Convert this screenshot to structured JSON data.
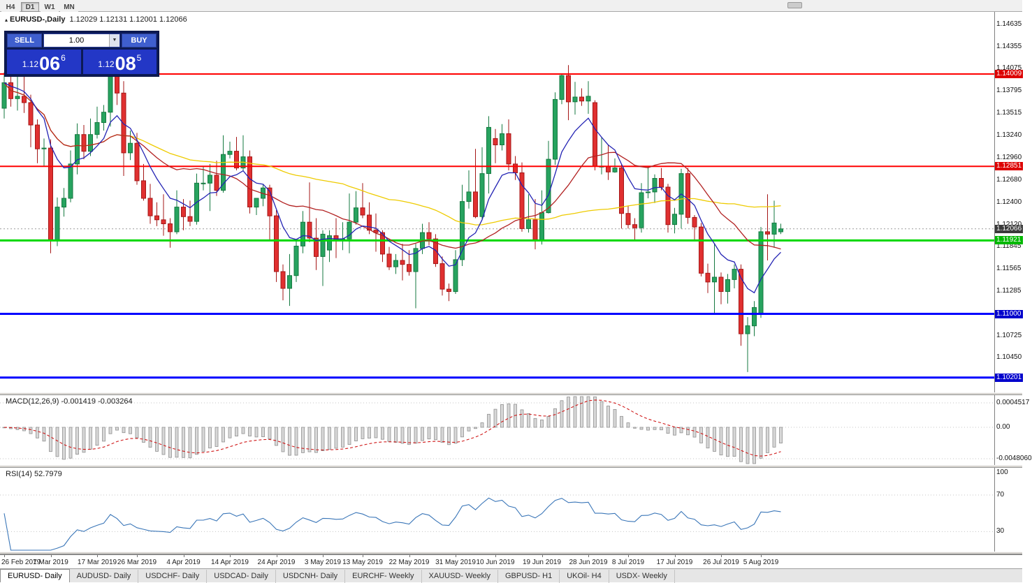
{
  "toolbar": {
    "timeframes": [
      "H4",
      "D1",
      "W1",
      "MN"
    ],
    "active": "D1"
  },
  "chart": {
    "collapse_icon": "▴",
    "symbol_period": "EURUSD-,Daily",
    "ohlc": "1.12029 1.12131 1.12001 1.12066"
  },
  "one_click": {
    "sell_label": "SELL",
    "buy_label": "BUY",
    "volume": "1.00",
    "dropdown_icon": "▼",
    "sell_price": {
      "prefix": "1.12",
      "big": "06",
      "sup": "6"
    },
    "buy_price": {
      "prefix": "1.12",
      "big": "08",
      "sup": "5"
    }
  },
  "chart_data": {
    "type": "candlestick",
    "symbol": "EURUSD-",
    "timeframe": "Daily",
    "ohlc_display": "1.12029 1.12131 1.12001 1.12066",
    "current_price": 1.12066,
    "current_price_label": "1.12066",
    "current_tag_bg": "#3a3a3a",
    "up_color": "#27a35f",
    "up_border": "#157a40",
    "down_color": "#e03030",
    "down_border": "#a51717",
    "price_axis": [
      "1.14635",
      "1.14355",
      "1.14075",
      "1.13795",
      "1.13515",
      "1.13240",
      "1.12960",
      "1.12680",
      "1.12400",
      "1.12120",
      "1.11845",
      "1.11565",
      "1.11285",
      "1.10725",
      "1.10450"
    ],
    "hlines": [
      {
        "price": 1.14009,
        "label": "1.14009",
        "color": "#ff0000",
        "label_bg": "#dd0000",
        "width": 2
      },
      {
        "price": 1.12851,
        "label": "1.12851",
        "color": "#ff0000",
        "label_bg": "#dd0000",
        "width": 2
      },
      {
        "price": 1.11921,
        "label": "1.11921",
        "color": "#00d800",
        "label_bg": "#00b800",
        "width": 3
      },
      {
        "price": 1.11,
        "label": "1.11000",
        "color": "#0000ff",
        "label_bg": "#0000cc",
        "width": 3
      },
      {
        "price": 1.10201,
        "label": "1.10201",
        "color": "#0000ff",
        "label_bg": "#0000cc",
        "width": 3
      }
    ],
    "moving_averages": [
      {
        "name": "slow",
        "period": 52,
        "type": "sma",
        "color": "#eecb00"
      },
      {
        "name": "medium",
        "period": 20,
        "type": "sma",
        "color": "#b22222"
      },
      {
        "name": "fast",
        "period": 8,
        "type": "ema",
        "color": "#2424b4"
      }
    ],
    "candles": [
      [
        1.1358,
        1.1403,
        1.1345,
        1.139
      ],
      [
        1.139,
        1.1401,
        1.136,
        1.137
      ],
      [
        1.137,
        1.142,
        1.1355,
        1.1373
      ],
      [
        1.1373,
        1.141,
        1.1352,
        1.1365
      ],
      [
        1.1365,
        1.1375,
        1.1309,
        1.1337
      ],
      [
        1.1337,
        1.1344,
        1.1289,
        1.1307
      ],
      [
        1.1307,
        1.132,
        1.1285,
        1.1308
      ],
      [
        1.1308,
        1.1319,
        1.1176,
        1.1193
      ],
      [
        1.1193,
        1.1246,
        1.1185,
        1.1234
      ],
      [
        1.1234,
        1.1258,
        1.1222,
        1.1245
      ],
      [
        1.1245,
        1.1305,
        1.124,
        1.1288
      ],
      [
        1.1288,
        1.1339,
        1.1275,
        1.1325
      ],
      [
        1.1325,
        1.1337,
        1.1294,
        1.1304
      ],
      [
        1.1304,
        1.1345,
        1.1298,
        1.1325
      ],
      [
        1.1325,
        1.136,
        1.132,
        1.134
      ],
      [
        1.134,
        1.1362,
        1.133,
        1.1353
      ],
      [
        1.1353,
        1.1448,
        1.1335,
        1.1412
      ],
      [
        1.1412,
        1.1438,
        1.1362,
        1.1377
      ],
      [
        1.1377,
        1.1392,
        1.1273,
        1.1302
      ],
      [
        1.1302,
        1.133,
        1.1293,
        1.1314
      ],
      [
        1.1314,
        1.1327,
        1.1262,
        1.1267
      ],
      [
        1.1267,
        1.1288,
        1.1242,
        1.1245
      ],
      [
        1.1245,
        1.1263,
        1.1213,
        1.1223
      ],
      [
        1.1223,
        1.124,
        1.121,
        1.1218
      ],
      [
        1.1218,
        1.125,
        1.1198,
        1.1213
      ],
      [
        1.1213,
        1.122,
        1.1183,
        1.1203
      ],
      [
        1.1203,
        1.1255,
        1.12,
        1.1234
      ],
      [
        1.1234,
        1.1244,
        1.1205,
        1.1222
      ],
      [
        1.1222,
        1.1242,
        1.121,
        1.1216
      ],
      [
        1.1216,
        1.1276,
        1.1212,
        1.1264
      ],
      [
        1.1264,
        1.1285,
        1.1255,
        1.1264
      ],
      [
        1.1264,
        1.1288,
        1.1229,
        1.1274
      ],
      [
        1.1274,
        1.1292,
        1.1248,
        1.1255
      ],
      [
        1.1255,
        1.1324,
        1.1252,
        1.13
      ],
      [
        1.13,
        1.1316,
        1.1295,
        1.1304
      ],
      [
        1.1304,
        1.1322,
        1.128,
        1.1283
      ],
      [
        1.1283,
        1.1324,
        1.128,
        1.1297
      ],
      [
        1.1297,
        1.1305,
        1.1226,
        1.1234
      ],
      [
        1.1234,
        1.1245,
        1.1224,
        1.1245
      ],
      [
        1.1245,
        1.1262,
        1.1235,
        1.1258
      ],
      [
        1.1258,
        1.1262,
        1.1192,
        1.1223
      ],
      [
        1.1223,
        1.123,
        1.114,
        1.1153
      ],
      [
        1.1153,
        1.1162,
        1.1117,
        1.1132
      ],
      [
        1.1132,
        1.1175,
        1.111,
        1.1148
      ],
      [
        1.1148,
        1.1192,
        1.114,
        1.1185
      ],
      [
        1.1185,
        1.1229,
        1.1176,
        1.1215
      ],
      [
        1.1215,
        1.1265,
        1.119,
        1.1195
      ],
      [
        1.1195,
        1.122,
        1.1155,
        1.1172
      ],
      [
        1.1172,
        1.1205,
        1.1135,
        1.12
      ],
      [
        1.118,
        1.1205,
        1.1165,
        1.1198
      ],
      [
        1.1198,
        1.122,
        1.117,
        1.1192
      ],
      [
        1.1192,
        1.1215,
        1.118,
        1.1194
      ],
      [
        1.1194,
        1.1251,
        1.1176,
        1.1215
      ],
      [
        1.1215,
        1.1254,
        1.1212,
        1.1233
      ],
      [
        1.1233,
        1.1264,
        1.122,
        1.1224
      ],
      [
        1.1224,
        1.124,
        1.12,
        1.1205
      ],
      [
        1.1205,
        1.1226,
        1.1178,
        1.1202
      ],
      [
        1.1202,
        1.1205,
        1.1165,
        1.1175
      ],
      [
        1.1175,
        1.1184,
        1.1155,
        1.1159
      ],
      [
        1.1159,
        1.1175,
        1.115,
        1.1167
      ],
      [
        1.1167,
        1.1188,
        1.1142,
        1.1162
      ],
      [
        1.1162,
        1.118,
        1.1148,
        1.1153
      ],
      [
        1.1153,
        1.1188,
        1.1107,
        1.1182
      ],
      [
        1.1182,
        1.1213,
        1.1175,
        1.1202
      ],
      [
        1.1202,
        1.1215,
        1.1186,
        1.1194
      ],
      [
        1.1194,
        1.12,
        1.1159,
        1.1163
      ],
      [
        1.1163,
        1.1172,
        1.1123,
        1.1131
      ],
      [
        1.1131,
        1.1138,
        1.1116,
        1.1128
      ],
      [
        1.1128,
        1.118,
        1.1125,
        1.1168
      ],
      [
        1.1168,
        1.1262,
        1.116,
        1.1241
      ],
      [
        1.1241,
        1.128,
        1.1232,
        1.1253
      ],
      [
        1.1253,
        1.1307,
        1.122,
        1.1222
      ],
      [
        1.1222,
        1.1309,
        1.1219,
        1.1276
      ],
      [
        1.1276,
        1.1348,
        1.1251,
        1.1334
      ],
      [
        1.132,
        1.1332,
        1.1289,
        1.1312
      ],
      [
        1.1312,
        1.1338,
        1.1305,
        1.1326
      ],
      [
        1.1326,
        1.1344,
        1.128,
        1.1288
      ],
      [
        1.1288,
        1.1298,
        1.1268,
        1.1277
      ],
      [
        1.1277,
        1.129,
        1.1203,
        1.1207
      ],
      [
        1.1207,
        1.125,
        1.1202,
        1.1218
      ],
      [
        1.1218,
        1.1244,
        1.1181,
        1.1193
      ],
      [
        1.1193,
        1.1255,
        1.1187,
        1.1227
      ],
      [
        1.1227,
        1.1317,
        1.1226,
        1.1294
      ],
      [
        1.1294,
        1.1378,
        1.1287,
        1.1369
      ],
      [
        1.1369,
        1.14,
        1.1363,
        1.1399
      ],
      [
        1.1399,
        1.1412,
        1.1343,
        1.1366
      ],
      [
        1.1366,
        1.1391,
        1.135,
        1.1372
      ],
      [
        1.1372,
        1.1383,
        1.1361,
        1.1367
      ],
      [
        1.1367,
        1.1392,
        1.1351,
        1.1373
      ],
      [
        1.1365,
        1.1368,
        1.128,
        1.1285
      ],
      [
        1.1285,
        1.1322,
        1.1275,
        1.1285
      ],
      [
        1.1285,
        1.1312,
        1.1268,
        1.1278
      ],
      [
        1.1278,
        1.1295,
        1.1277,
        1.1283
      ],
      [
        1.1283,
        1.1288,
        1.1207,
        1.1226
      ],
      [
        1.1226,
        1.1235,
        1.1207,
        1.1212
      ],
      [
        1.1212,
        1.122,
        1.1193,
        1.1208
      ],
      [
        1.1208,
        1.1264,
        1.1202,
        1.1252
      ],
      [
        1.1252,
        1.1285,
        1.1245,
        1.1253
      ],
      [
        1.1253,
        1.1275,
        1.1239,
        1.127
      ],
      [
        1.127,
        1.1283,
        1.1255,
        1.1259
      ],
      [
        1.1259,
        1.1263,
        1.1202,
        1.1212
      ],
      [
        1.1212,
        1.1233,
        1.1201,
        1.1225
      ],
      [
        1.1225,
        1.1282,
        1.1207,
        1.1276
      ],
      [
        1.1276,
        1.1283,
        1.1213,
        1.1221
      ],
      [
        1.1221,
        1.1224,
        1.1191,
        1.1209
      ],
      [
        1.1209,
        1.1214,
        1.1147,
        1.1151
      ],
      [
        1.1151,
        1.1163,
        1.1126,
        1.114
      ],
      [
        1.114,
        1.1188,
        1.1101,
        1.1146
      ],
      [
        1.1146,
        1.1152,
        1.1112,
        1.1128
      ],
      [
        1.1128,
        1.115,
        1.1113,
        1.1143
      ],
      [
        1.1143,
        1.1162,
        1.1132,
        1.1156
      ],
      [
        1.1156,
        1.1162,
        1.106,
        1.1075
      ],
      [
        1.1075,
        1.1096,
        1.1027,
        1.1085
      ],
      [
        1.1085,
        1.1116,
        1.1072,
        1.1108
      ],
      [
        1.11,
        1.1209,
        1.1095,
        1.1203
      ],
      [
        1.1203,
        1.125,
        1.1167,
        1.12
      ],
      [
        1.12,
        1.1242,
        1.1183,
        1.1214
      ],
      [
        1.12029,
        1.12131,
        1.12001,
        1.12066
      ]
    ],
    "date_labels": [
      {
        "text": "26 Feb 2019",
        "i": 0
      },
      {
        "text": "7 Mar 2019",
        "i": 7
      },
      {
        "text": "17 Mar 2019",
        "i": 14
      },
      {
        "text": "26 Mar 2019",
        "i": 20
      },
      {
        "text": "4 Apr 2019",
        "i": 27
      },
      {
        "text": "14 Apr 2019",
        "i": 34
      },
      {
        "text": "24 Apr 2019",
        "i": 41
      },
      {
        "text": "3 May 2019",
        "i": 48
      },
      {
        "text": "13 May 2019",
        "i": 54
      },
      {
        "text": "22 May 2019",
        "i": 61
      },
      {
        "text": "31 May 2019",
        "i": 68
      },
      {
        "text": "10 Jun 2019",
        "i": 74
      },
      {
        "text": "19 Jun 2019",
        "i": 81
      },
      {
        "text": "28 Jun 2019",
        "i": 88
      },
      {
        "text": "8 Jul 2019",
        "i": 94
      },
      {
        "text": "17 Jul 2019",
        "i": 101
      },
      {
        "text": "26 Jul 2019",
        "i": 108
      },
      {
        "text": "5 Aug 2019",
        "i": 114
      }
    ],
    "macd": {
      "label": "MACD(12,26,9)",
      "values": "-0.001419 -0.003264",
      "params": [
        12,
        26,
        9
      ],
      "axis_labels": [
        "0.0004517",
        "0.00",
        "-0.0048060"
      ],
      "histogram_color": "#d8d8d8",
      "histogram_border": "#909090",
      "signal_color": "#d01818"
    },
    "rsi": {
      "label": "RSI(14)",
      "value": "52.7979",
      "period": 14,
      "axis_labels": [
        "100",
        "70",
        "30"
      ],
      "levels": [
        70,
        30
      ],
      "color": "#3a76b8"
    }
  },
  "bottom_tabs": [
    {
      "label": "EURUSD- Daily",
      "active": true
    },
    {
      "label": "AUDUSD- Daily",
      "active": false
    },
    {
      "label": "USDCHF- Daily",
      "active": false
    },
    {
      "label": "USDCAD- Daily",
      "active": false
    },
    {
      "label": "USDCNH- Daily",
      "active": false
    },
    {
      "label": "EURCHF- Weekly",
      "active": false
    },
    {
      "label": "XAUUSD- Weekly",
      "active": false
    },
    {
      "label": "GBPUSD- H1",
      "active": false
    },
    {
      "label": "UKOil- H4",
      "active": false
    },
    {
      "label": "USDX- Weekly",
      "active": false
    }
  ]
}
